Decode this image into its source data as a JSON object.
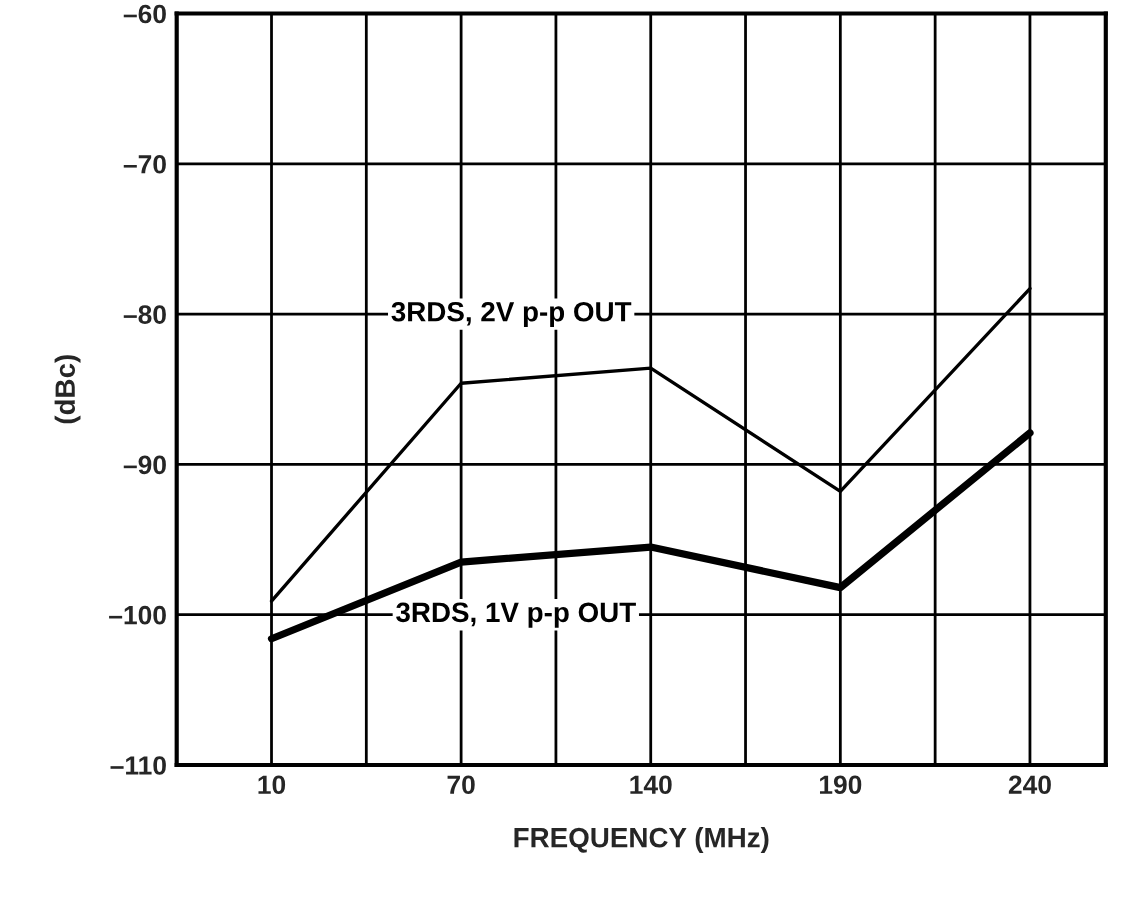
{
  "chart_data": {
    "type": "line",
    "xlabel": "FREQUENCY (MHz)",
    "ylabel": "(dBc)",
    "categories": [
      "10",
      "70",
      "140",
      "190",
      "240"
    ],
    "series": [
      {
        "name": "3RDS, 2V p-p OUT",
        "color": "#000000",
        "values": [
          -99.1,
          -84.6,
          -83.6,
          -91.8,
          -78.3
        ]
      },
      {
        "name": "3RDS, 1V p-p OUT",
        "color": "#000000",
        "values": [
          -101.6,
          -96.5,
          -95.5,
          -98.2,
          -87.9
        ]
      }
    ],
    "ylim": [
      -110,
      -60
    ],
    "yticks": [
      {
        "value": -110,
        "label": "–110"
      },
      {
        "value": -100,
        "label": "–100"
      },
      {
        "value": -90,
        "label": "–90"
      },
      {
        "value": -80,
        "label": "–80"
      },
      {
        "value": -70,
        "label": "–70"
      },
      {
        "value": -60,
        "label": "–60"
      }
    ],
    "grid": true,
    "marker": "none",
    "line_style": "solid",
    "legend": false
  }
}
